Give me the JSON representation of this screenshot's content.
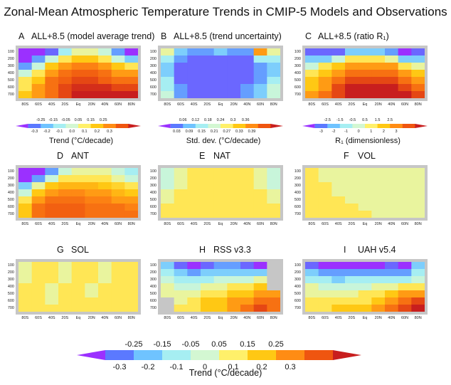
{
  "title": "Zonal-Mean Atmospheric Temperature Trends in CMIP-5 Models and Observations",
  "axes": {
    "y_ticks": [
      "100",
      "200",
      "300",
      "400",
      "500",
      "600",
      "700"
    ],
    "x_ticks": [
      "80S",
      "60S",
      "40S",
      "20S",
      "Eq",
      "20N",
      "40N",
      "60N",
      "80N"
    ]
  },
  "colors": {
    "trend_scale": [
      "#9b30ff",
      "#5b79ff",
      "#6fc3ff",
      "#a6eef2",
      "#d3f7d2",
      "#fff06a",
      "#ffc814",
      "#ff8c14",
      "#ef5510",
      "#c81e1e"
    ],
    "std_scale": [
      "#9b30ff",
      "#5b79ff",
      "#6fc3ff",
      "#a6eef2",
      "#d3f7d2",
      "#fff06a",
      "#ffc814",
      "#ff8c14",
      "#ef5510",
      "#c81e1e"
    ],
    "missing": "#c6c6c6"
  },
  "colorbars": [
    {
      "title": "Trend (°C/decade)",
      "upper_labels": [
        "-0.25",
        "-0.15",
        "-0.05",
        "0.05",
        "0.15",
        "0.25"
      ],
      "lower_labels": [
        "-0.3",
        "-0.2",
        "-0.1",
        "0.0",
        "0.1",
        "0.2",
        "0.3"
      ]
    },
    {
      "title": "Std. dev. (°C/decade)",
      "upper_labels": [
        "0.06",
        "0.12",
        "0.18",
        "0.24",
        "0.3",
        "0.36"
      ],
      "lower_labels": [
        "0.03",
        "0.09",
        "0.15",
        "0.21",
        "0.27",
        "0.33",
        "0.39"
      ]
    },
    {
      "title": "R₁ (dimensionless)",
      "upper_labels": [
        "-2.5",
        "-1.5",
        "-0.5",
        "0.5",
        "1.5",
        "2.5"
      ],
      "lower_labels": [
        "-3",
        "-2",
        "-1",
        "0",
        "1",
        "2",
        "3"
      ]
    }
  ],
  "bottom_colorbar": {
    "title": "Trend (°C/decade)",
    "upper_labels": [
      "-0.25",
      "-0.15",
      "-0.05",
      "0.05",
      "0.15",
      "0.25"
    ],
    "lower_labels": [
      "-0.3",
      "-0.2",
      "-0.1",
      "0",
      "0.1",
      "0.2",
      "0.3"
    ]
  },
  "chart_data": [
    {
      "type": "heatmap",
      "letter": "A",
      "name": "ALL+8.5 (model average trend)",
      "x": [
        "80S",
        "60S",
        "40S",
        "20S",
        "Eq",
        "20N",
        "40N",
        "60N",
        "80N"
      ],
      "y": [
        100,
        200,
        300,
        400,
        500,
        600,
        700
      ],
      "z": [
        [
          -0.3,
          -0.3,
          -0.25,
          -0.1,
          0.0,
          0.0,
          -0.05,
          -0.2,
          -0.3
        ],
        [
          -0.3,
          -0.2,
          -0.05,
          0.05,
          0.1,
          0.1,
          0.05,
          -0.05,
          -0.15
        ],
        [
          -0.2,
          -0.05,
          0.1,
          0.15,
          0.18,
          0.18,
          0.15,
          0.1,
          0.05
        ],
        [
          -0.05,
          0.05,
          0.15,
          0.2,
          0.22,
          0.22,
          0.2,
          0.15,
          0.15
        ],
        [
          0.05,
          0.1,
          0.2,
          0.22,
          0.25,
          0.25,
          0.22,
          0.2,
          0.2
        ],
        [
          0.05,
          0.15,
          0.2,
          0.25,
          0.28,
          0.28,
          0.28,
          0.25,
          0.25
        ],
        [
          0.1,
          0.15,
          0.2,
          0.25,
          0.3,
          0.3,
          0.3,
          0.3,
          0.3
        ]
      ]
    },
    {
      "type": "heatmap",
      "letter": "B",
      "name": "ALL+8.5 (trend uncertainty)",
      "x": [
        "80S",
        "60S",
        "40S",
        "20S",
        "Eq",
        "20N",
        "40N",
        "60N",
        "80N"
      ],
      "y": [
        100,
        200,
        300,
        400,
        500,
        600,
        700
      ],
      "z": [
        [
          0.21,
          0.12,
          0.09,
          0.09,
          0.12,
          0.09,
          0.09,
          0.3,
          0.21
        ],
        [
          0.15,
          0.09,
          0.06,
          0.06,
          0.06,
          0.06,
          0.06,
          0.15,
          0.15
        ],
        [
          0.12,
          0.06,
          0.06,
          0.06,
          0.06,
          0.06,
          0.06,
          0.09,
          0.12
        ],
        [
          0.12,
          0.06,
          0.06,
          0.06,
          0.06,
          0.06,
          0.06,
          0.09,
          0.12
        ],
        [
          0.15,
          0.06,
          0.06,
          0.06,
          0.06,
          0.06,
          0.06,
          0.09,
          0.15
        ],
        [
          0.15,
          0.09,
          0.06,
          0.06,
          0.06,
          0.06,
          0.09,
          0.12,
          0.18
        ],
        [
          0.18,
          0.09,
          0.06,
          0.06,
          0.06,
          0.06,
          0.09,
          0.12,
          0.18
        ]
      ]
    },
    {
      "type": "heatmap",
      "letter": "C",
      "name": "ALL+8.5 (ratio R₁)",
      "x": [
        "80S",
        "60S",
        "40S",
        "20S",
        "Eq",
        "20N",
        "40N",
        "60N",
        "80N"
      ],
      "y": [
        100,
        200,
        300,
        400,
        500,
        600,
        700
      ],
      "z": [
        [
          -2.5,
          -2.5,
          -2.5,
          -1.5,
          -1.5,
          -1.5,
          -2,
          -3,
          -2.5
        ],
        [
          -1.5,
          -1.5,
          -0.5,
          0.5,
          0.5,
          0.5,
          0,
          -1.5,
          -1.5
        ],
        [
          -0.5,
          0.5,
          1,
          1.5,
          1.5,
          1.5,
          1.5,
          0.5,
          0
        ],
        [
          0.5,
          1,
          1.5,
          2,
          2,
          2,
          2,
          1.5,
          1
        ],
        [
          1,
          1.5,
          2,
          2.5,
          2.5,
          2.5,
          2.5,
          2,
          1.5
        ],
        [
          1,
          1.5,
          2.5,
          3,
          3,
          3,
          3,
          2.5,
          2
        ],
        [
          1.5,
          2,
          2.5,
          3,
          3,
          3,
          3,
          3,
          2.5
        ]
      ]
    },
    {
      "type": "heatmap",
      "letter": "D",
      "name": "ANT",
      "x": [
        "80S",
        "60S",
        "40S",
        "20S",
        "Eq",
        "20N",
        "40N",
        "60N",
        "80N"
      ],
      "y": [
        100,
        200,
        300,
        400,
        500,
        600,
        700
      ],
      "z": [
        [
          -0.3,
          -0.3,
          -0.2,
          -0.05,
          0.0,
          0.0,
          0.0,
          -0.05,
          -0.1
        ],
        [
          -0.3,
          -0.2,
          -0.05,
          0.05,
          0.05,
          0.05,
          0.05,
          0.0,
          -0.05
        ],
        [
          -0.15,
          0.0,
          0.1,
          0.12,
          0.12,
          0.12,
          0.1,
          0.08,
          0.05
        ],
        [
          -0.05,
          0.1,
          0.15,
          0.17,
          0.17,
          0.15,
          0.15,
          0.12,
          0.1
        ],
        [
          0.05,
          0.15,
          0.2,
          0.2,
          0.2,
          0.18,
          0.18,
          0.15,
          0.15
        ],
        [
          0.1,
          0.2,
          0.22,
          0.22,
          0.22,
          0.2,
          0.2,
          0.2,
          0.18
        ],
        [
          0.1,
          0.2,
          0.22,
          0.22,
          0.22,
          0.2,
          0.2,
          0.2,
          0.2
        ]
      ]
    },
    {
      "type": "heatmap",
      "letter": "E",
      "name": "NAT",
      "x": [
        "80S",
        "60S",
        "40S",
        "20S",
        "Eq",
        "20N",
        "40N",
        "60N",
        "80N"
      ],
      "y": [
        100,
        200,
        300,
        400,
        500,
        600,
        700
      ],
      "z": [
        [
          -0.05,
          0.0,
          0.05,
          0.05,
          0.05,
          0.05,
          0.05,
          0.0,
          -0.05
        ],
        [
          -0.05,
          0.0,
          0.05,
          0.05,
          0.05,
          0.05,
          0.05,
          0.0,
          -0.05
        ],
        [
          -0.05,
          0.0,
          0.05,
          0.05,
          0.05,
          0.05,
          0.05,
          0.0,
          -0.05
        ],
        [
          0.0,
          0.05,
          0.05,
          0.05,
          0.05,
          0.05,
          0.05,
          0.05,
          0.0
        ],
        [
          0.0,
          0.05,
          0.05,
          0.05,
          0.05,
          0.05,
          0.05,
          0.05,
          0.0
        ],
        [
          0.05,
          0.05,
          0.05,
          0.05,
          0.05,
          0.05,
          0.05,
          0.05,
          0.05
        ],
        [
          0.05,
          0.05,
          0.05,
          0.05,
          0.05,
          0.05,
          0.05,
          0.05,
          0.05
        ]
      ]
    },
    {
      "type": "heatmap",
      "letter": "F",
      "name": "VOL",
      "x": [
        "80S",
        "60S",
        "40S",
        "20S",
        "Eq",
        "20N",
        "40N",
        "60N",
        "80N"
      ],
      "y": [
        100,
        200,
        300,
        400,
        500,
        600,
        700
      ],
      "z": [
        [
          0.05,
          0.0,
          0.0,
          0.0,
          0.0,
          0.0,
          0.0,
          0.0,
          0.0
        ],
        [
          0.05,
          0.0,
          0.0,
          0.0,
          0.0,
          0.0,
          0.0,
          0.0,
          0.0
        ],
        [
          0.05,
          0.05,
          0.0,
          0.0,
          0.0,
          0.0,
          0.0,
          0.0,
          0.0
        ],
        [
          0.05,
          0.05,
          0.0,
          0.0,
          0.0,
          0.0,
          0.0,
          0.0,
          0.0
        ],
        [
          0.05,
          0.05,
          0.05,
          0.0,
          0.0,
          0.0,
          0.0,
          0.0,
          0.0
        ],
        [
          0.05,
          0.05,
          0.05,
          0.05,
          0.0,
          0.0,
          0.0,
          0.0,
          0.0
        ],
        [
          0.05,
          0.05,
          0.05,
          0.05,
          0.05,
          0.0,
          0.0,
          0.0,
          0.0
        ]
      ]
    },
    {
      "type": "heatmap",
      "letter": "G",
      "name": "SOL",
      "x": [
        "80S",
        "60S",
        "40S",
        "20S",
        "Eq",
        "20N",
        "40N",
        "60N",
        "80N"
      ],
      "y": [
        100,
        200,
        300,
        400,
        500,
        600,
        700
      ],
      "z": [
        [
          0.0,
          0.05,
          0.05,
          0.0,
          0.05,
          0.05,
          0.0,
          0.05,
          0.05
        ],
        [
          0.0,
          0.05,
          0.05,
          0.0,
          0.05,
          0.05,
          0.0,
          0.05,
          0.05
        ],
        [
          0.0,
          0.05,
          0.05,
          0.0,
          0.05,
          0.05,
          0.0,
          0.05,
          0.05
        ],
        [
          0.05,
          0.05,
          0.0,
          0.05,
          0.05,
          0.0,
          0.05,
          0.05,
          0.05
        ],
        [
          0.05,
          0.05,
          0.0,
          0.05,
          0.05,
          0.0,
          0.05,
          0.05,
          0.05
        ],
        [
          0.05,
          0.05,
          0.0,
          0.05,
          0.05,
          0.05,
          0.05,
          0.05,
          0.05
        ],
        [
          0.05,
          0.05,
          0.05,
          0.05,
          0.05,
          0.05,
          0.05,
          0.05,
          0.05
        ]
      ]
    },
    {
      "type": "heatmap",
      "letter": "H",
      "name": "RSS v3.3",
      "x": [
        "80S",
        "60S",
        "40S",
        "20S",
        "Eq",
        "20N",
        "40N",
        "60N",
        "80N"
      ],
      "y": [
        100,
        200,
        300,
        400,
        500,
        600,
        700
      ],
      "z": [
        [
          -0.15,
          -0.25,
          -0.3,
          -0.25,
          -0.2,
          -0.2,
          -0.25,
          -0.3,
          null
        ],
        [
          -0.1,
          -0.15,
          -0.2,
          -0.15,
          -0.15,
          -0.15,
          -0.15,
          -0.15,
          null
        ],
        [
          -0.05,
          -0.1,
          -0.1,
          -0.1,
          -0.05,
          -0.05,
          -0.05,
          0.0,
          null
        ],
        [
          0.0,
          -0.05,
          -0.05,
          0.0,
          0.0,
          0.05,
          0.05,
          0.1,
          null
        ],
        [
          0.0,
          0.0,
          0.0,
          0.05,
          0.05,
          0.1,
          0.1,
          0.15,
          0.15
        ],
        [
          null,
          0.0,
          0.05,
          0.1,
          0.1,
          0.15,
          0.15,
          0.2,
          0.2
        ],
        [
          null,
          0.05,
          0.05,
          0.1,
          0.1,
          0.15,
          0.2,
          0.25,
          0.2
        ]
      ]
    },
    {
      "type": "heatmap",
      "letter": "I",
      "name": "UAH v5.4",
      "x": [
        "80S",
        "60S",
        "40S",
        "20S",
        "Eq",
        "20N",
        "40N",
        "60N",
        "80N"
      ],
      "y": [
        100,
        200,
        300,
        400,
        500,
        600,
        700
      ],
      "z": [
        [
          -0.25,
          -0.3,
          -0.3,
          -0.3,
          -0.3,
          -0.3,
          -0.25,
          -0.3,
          -0.15
        ],
        [
          -0.15,
          -0.2,
          -0.2,
          -0.2,
          -0.2,
          -0.2,
          -0.2,
          -0.2,
          -0.1
        ],
        [
          -0.1,
          -0.1,
          -0.15,
          -0.1,
          -0.1,
          -0.1,
          -0.1,
          -0.1,
          -0.05
        ],
        [
          0.0,
          -0.05,
          -0.05,
          -0.05,
          -0.05,
          0.0,
          0.0,
          0.05,
          0.05
        ],
        [
          0.0,
          0.0,
          0.0,
          0.0,
          0.05,
          0.05,
          0.1,
          0.15,
          0.15
        ],
        [
          0.05,
          0.05,
          0.05,
          0.05,
          0.05,
          0.1,
          0.15,
          0.2,
          0.25
        ],
        [
          0.05,
          0.05,
          0.1,
          0.1,
          0.1,
          0.15,
          0.2,
          0.25,
          0.3
        ]
      ]
    }
  ]
}
